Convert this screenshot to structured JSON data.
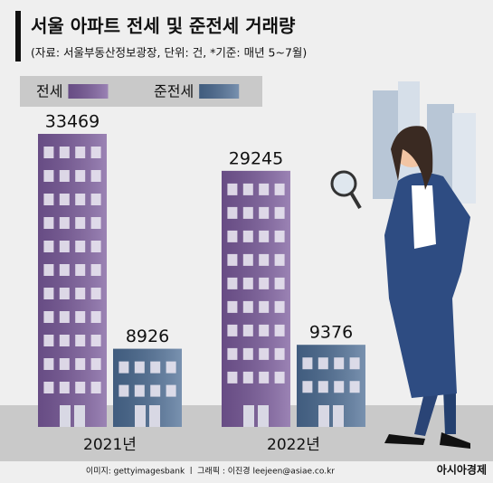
{
  "chart_data": {
    "type": "bar",
    "title": "서울 아파트 전세 및 준전세 거래량",
    "subtitle": "(자료: 서울부동산정보광장, 단위: 건, *기준: 매년 5~7월)",
    "categories": [
      "2021년",
      "2022년"
    ],
    "series": [
      {
        "name": "전세",
        "color": "#7a5a9c",
        "values": [
          33469,
          29245
        ]
      },
      {
        "name": "준전세",
        "color": "#4c6d95",
        "values": [
          8926,
          9376
        ]
      }
    ],
    "credit": "이미지: gettyimagesbank  ㅣ 그래픽 : 이진경 leejeen@asiae.co.kr",
    "logo": "아시아경제"
  }
}
